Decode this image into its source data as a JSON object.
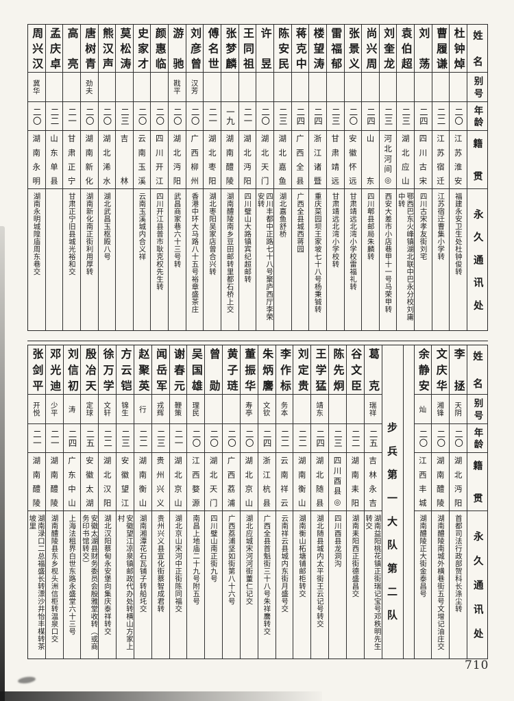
{
  "page": {
    "number": "710"
  },
  "headers": {
    "name": "姓名",
    "alias": "别号",
    "age": "年龄",
    "native": "籍贯",
    "address": "永久通讯处"
  },
  "tables": [
    {
      "id": "top-roster",
      "columns": [
        {
          "type": "header"
        },
        {
          "type": "person",
          "name": "杜钟焯",
          "alias": "",
          "age": "二〇",
          "native": "江苏淮安",
          "address": "福建永安卫生处杜钟俊转"
        },
        {
          "type": "person",
          "name": "曹履谦",
          "alias": "",
          "age": "二二",
          "native": "江苏宿迁",
          "address": "江苏宿迁曹集小学转"
        },
        {
          "type": "person",
          "name": "刘荡",
          "alias": "",
          "age": "二四",
          "native": "四川古宋",
          "address": "四川古宋孝友街刘宅"
        },
        {
          "type": "person",
          "name": "袁伯超",
          "alias": "",
          "age": "二三",
          "native": "湖北应山",
          "address": "鄂西巴东火峰镇湖北联中巴永分校刘庸中转"
        },
        {
          "type": "person",
          "name": "刘奎龙",
          "alias": "",
          "age": "二三",
          "native": "河北河间◎",
          "address": "西安大差市小店巷甲十一号马荣甲转"
        },
        {
          "type": "person",
          "name": "尚兴周",
          "alias": "",
          "age": "二四",
          "native": "山东",
          "address": "四川郫县邮局朱麟转"
        },
        {
          "type": "person",
          "name": "张景义",
          "alias": "",
          "age": "二〇",
          "native": "安徽怀远",
          "address": "甘肃靖远北湾小学校雷福礼转"
        },
        {
          "type": "person",
          "name": "雷福郁",
          "alias": "",
          "age": "二三",
          "native": "甘肃靖远",
          "address": "甘肃靖远北湾小学校转"
        },
        {
          "type": "person",
          "name": "楼望涛",
          "alias": "",
          "age": "二四",
          "native": "浙江诸暨",
          "address": "重庆菜园坝王家坡七十八号杨秉铖转"
        },
        {
          "type": "person",
          "name": "蒋克中",
          "alias": "",
          "age": "二四",
          "native": "广西全县",
          "address": "广西全县城西蒋园"
        },
        {
          "type": "person",
          "name": "陈安民",
          "alias": "",
          "age": "二三",
          "native": "湖北嘉鱼",
          "address": "湖北嘉鱼舒桥"
        },
        {
          "type": "person",
          "name": "许昱",
          "alias": "",
          "age": "二〇",
          "native": "湖北天门",
          "address": "四川丰都中正路七十八号聚庐西厅李荣安转"
        },
        {
          "type": "person",
          "name": "王同祖",
          "alias": "",
          "age": "二一",
          "native": "湖北沔阳",
          "address": "四川璧山大路镇宾纪超邮转"
        },
        {
          "type": "person",
          "name": "张梦麟",
          "alias": "",
          "age": "一九",
          "native": "湖南醴陵",
          "address": "湖南醴陵南乡豆田邮转里都石桥上交"
        },
        {
          "type": "person",
          "name": "傅名世",
          "alias": "",
          "age": "二一",
          "native": "湖北枣阳",
          "address": "湖北枣阳吴家店曾合兴转"
        },
        {
          "type": "person",
          "name": "刘彦曾",
          "alias": "汉芳",
          "age": "二〇",
          "native": "广西柳州",
          "address": "香港中环大马路八十五号裕章盛茶庄"
        },
        {
          "type": "person",
          "name": "游驰",
          "alias": "戡平",
          "age": "二〇",
          "native": "湖北沔阳",
          "address": "武昌商家巷六十三号转"
        },
        {
          "type": "person",
          "name": "颜惠临",
          "alias": "",
          "age": "二〇",
          "native": "四川开江",
          "address": "四川开江县普市耿克权先生转"
        },
        {
          "type": "person",
          "name": "史家才",
          "alias": "",
          "age": "二〇",
          "native": "云南玉溪",
          "address": "云南玉溪城内合义祥"
        },
        {
          "type": "person",
          "name": "莫松涛",
          "alias": "",
          "age": "二三",
          "native": "吉林",
          "address": ""
        },
        {
          "type": "person",
          "name": "熊汉声",
          "alias": "",
          "age": "二〇",
          "native": "湖北浠水",
          "address": "湖北武昌玉枢殿八号"
        },
        {
          "type": "person",
          "name": "唐树青",
          "alias": "劲夫",
          "age": "二〇",
          "native": "湖南新化",
          "address": "湖南新化南正街利用厚转"
        },
        {
          "type": "person",
          "name": "高亮",
          "alias": "",
          "age": "二一",
          "native": "甘肃正宁",
          "address": "甘肃正宁旧县城光裕和交"
        },
        {
          "type": "person",
          "name": "孟庆卓",
          "alias": "",
          "age": "二二",
          "native": "山东单县",
          "address": ""
        },
        {
          "type": "person",
          "name": "周兴汉",
          "alias": "冀华",
          "age": "二〇",
          "native": "湖南永明",
          "address": "湖南永明城隍庙周东巷交"
        }
      ]
    },
    {
      "id": "bottom-roster",
      "columns": [
        {
          "type": "header"
        },
        {
          "type": "person",
          "name": "李拯",
          "alias": "天阴",
          "age": "二〇",
          "native": "湖北沔阳",
          "address": "首都司法行政部贺科长涤尘转"
        },
        {
          "type": "person",
          "name": "文庆华",
          "alias": "湘锋",
          "age": "二〇",
          "native": "湖南醴陵",
          "address": "湖南醴陵南城外横巷街五号文增记油庄交"
        },
        {
          "type": "person",
          "name": "余静安",
          "alias": "灿",
          "age": "二〇",
          "native": "江西丰城",
          "address": "湖南醴陵正大街金泰昌号"
        },
        {
          "type": "spacer"
        },
        {
          "type": "unit",
          "label": "步兵第一大队第二队"
        },
        {
          "type": "person",
          "name": "葛克",
          "alias": "瑞祥",
          "age": "二五",
          "native": "吉林永吉",
          "address": "湖南益阳桃花镇正街瑞记宝号邓秩明先生转交"
        },
        {
          "type": "person",
          "name": "谷文臣",
          "alias": "",
          "age": "二二",
          "native": "湖南耒阳",
          "address": "湖南耒阳西正街德盛昌交"
        },
        {
          "type": "person",
          "name": "陈先炯",
          "alias": "",
          "age": "二三",
          "native": "四川酉县◎",
          "address": "四川酉县龙洞沟"
        },
        {
          "type": "person",
          "name": "王学猛",
          "alias": "靖东",
          "age": "二四",
          "native": "湖北随县",
          "address": "湖北随县城内太平街王云记号转交"
        },
        {
          "type": "person",
          "name": "刘定贵",
          "alias": "",
          "age": "二二",
          "native": "湖南衡山",
          "address": "湖南衡山柘塘铺邮柜转交"
        },
        {
          "type": "person",
          "name": "李作标",
          "alias": "务本",
          "age": "二二",
          "native": "云南祥云",
          "address": "云南祥云县城内东街月盛号交"
        },
        {
          "type": "person",
          "name": "朱炳麐",
          "alias": "文钦",
          "age": "二四",
          "native": "浙江杭县",
          "address": "广西全县首魁街三十八号朱祥麐转交"
        },
        {
          "type": "person",
          "name": "董振华",
          "alias": "寿亭",
          "age": "二〇",
          "native": "湖北京山",
          "address": "湖北应城宋河河街董仁记交"
        },
        {
          "type": "person",
          "name": "黄子琏",
          "alias": "",
          "age": "二〇",
          "native": "广西荔浦",
          "address": "广西荔浦坚如街第八十六号"
        },
        {
          "type": "person",
          "name": "曾勋",
          "alias": "",
          "age": "二〇",
          "native": "湖北天门",
          "address": "四川璧山南正街九号"
        },
        {
          "type": "person",
          "name": "吴国雄",
          "alias": "理民",
          "age": "二〇",
          "native": "江西婺源",
          "address": "南昌上地庙二十九号附五号"
        },
        {
          "type": "person",
          "name": "谢春元",
          "alias": "鞭策",
          "age": "二一",
          "native": "湖北京山",
          "address": "湖北京山宋河中正街陈同福交"
        },
        {
          "type": "person",
          "name": "闻岳军",
          "alias": "戎辉",
          "age": "二三",
          "native": "贵州兴义",
          "address": "贵州兴义县宣化街蔡智成君转"
        },
        {
          "type": "person",
          "name": "赵聚英",
          "alias": "行",
          "age": "二二",
          "native": "湖南衡山",
          "address": "湖南湘潭花石瓦铺子转船圫交"
        },
        {
          "type": "person",
          "name": "方云铠",
          "alias": "锦生",
          "age": "二三",
          "native": "安徽望江",
          "address": "安徽望江凉泉镇邮政代办处转横山方家上村"
        },
        {
          "type": "person",
          "name": "徐万学",
          "alias": "文轩",
          "age": "二二",
          "native": "湖北汉阳",
          "address": "湖北汉阳蔡甸永安堡向集庆泰祥转交"
        },
        {
          "type": "person",
          "name": "殷冶天",
          "alias": "定球",
          "age": "二五",
          "native": "安徽太湖",
          "address": "安徽太湖县财务委员会殷雅堂收转（或商务印书馆转交）"
        },
        {
          "type": "person",
          "name": "刘信初",
          "alias": "涛",
          "age": "二四",
          "native": "广东中山",
          "address": "上海法租界白世东路永盛堂六十三号"
        },
        {
          "type": "person",
          "name": "邓光迪",
          "alias": "少平",
          "age": "二一",
          "native": "湖南醴陵",
          "address": "湖南醴陵县东乡枧头洲信柜转温泉口交"
        },
        {
          "type": "person",
          "name": "张剑平",
          "alias": "开悦",
          "age": "二一",
          "native": "湖南醴陵",
          "address": "湖南渌口二总福盛长转漂沙井怡丰楳转茶坡里"
        }
      ]
    }
  ]
}
